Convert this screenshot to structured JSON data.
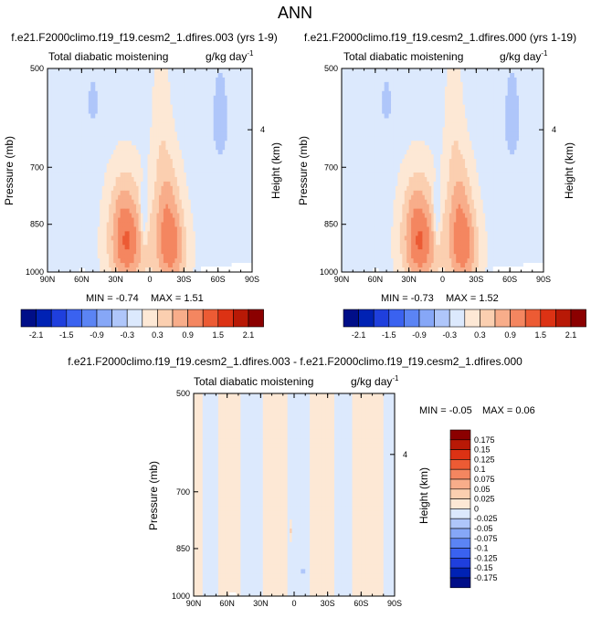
{
  "page": {
    "title": "ANN"
  },
  "units_label": "g/kg day",
  "units_exp": "-1",
  "chart_data": [
    {
      "type": "heatmap",
      "title": "f.e21.F2000climo.f19_f19.cesm2_1.dfires.003 (yrs 1-9)",
      "subtitle_left": "Total diabatic moistening",
      "ylabel": "Pressure (mb)",
      "ylabel_right": "Height (km)",
      "x_ticks": [
        "90N",
        "60N",
        "30N",
        "0",
        "30S",
        "60S",
        "90S"
      ],
      "y_ticks": [
        "500",
        "700",
        "850",
        "1000"
      ],
      "y_ticks_right": [
        "4"
      ],
      "xlim": [
        90,
        -90
      ],
      "ylim": [
        1000,
        500
      ],
      "log_scale_y": true,
      "min_label": "MIN =  -0.74",
      "max_label": "MAX =   1.51",
      "features": [
        {
          "lat": 20,
          "p": 930,
          "value": 1.1,
          "sx": 16,
          "sp": 130
        },
        {
          "lat": -18,
          "p": 930,
          "value": 1.1,
          "sx": 14,
          "sp": 130
        },
        {
          "lat": 22,
          "p": 800,
          "value": 0.6,
          "sx": 14,
          "sp": 120
        },
        {
          "lat": -15,
          "p": 780,
          "value": 0.6,
          "sx": 12,
          "sp": 130
        },
        {
          "lat": -10,
          "p": 600,
          "value": 0.25,
          "sx": 8,
          "sp": 150
        },
        {
          "lat": 5,
          "p": 820,
          "value": -0.6,
          "sx": 3,
          "sp": 80
        },
        {
          "lat": 50,
          "p": 560,
          "value": -0.3,
          "sx": 6,
          "sp": 60
        },
        {
          "lat": -62,
          "p": 590,
          "value": -0.35,
          "sx": 8,
          "sp": 110
        }
      ],
      "background": -0.1
    },
    {
      "type": "heatmap",
      "title": "f.e21.F2000climo.f19_f19.cesm2_1.dfires.000 (yrs 1-19)",
      "subtitle_left": "Total diabatic moistening",
      "ylabel": "Pressure (mb)",
      "ylabel_right": "Height (km)",
      "x_ticks": [
        "90N",
        "60N",
        "30N",
        "0",
        "30S",
        "60S",
        "90S"
      ],
      "y_ticks": [
        "500",
        "700",
        "850",
        "1000"
      ],
      "y_ticks_right": [
        "4"
      ],
      "xlim": [
        90,
        -90
      ],
      "ylim": [
        1000,
        500
      ],
      "log_scale_y": true,
      "min_label": "MIN =  -0.73",
      "max_label": "MAX =   1.52",
      "features": [
        {
          "lat": 20,
          "p": 930,
          "value": 1.1,
          "sx": 16,
          "sp": 130
        },
        {
          "lat": -18,
          "p": 930,
          "value": 1.1,
          "sx": 14,
          "sp": 130
        },
        {
          "lat": 22,
          "p": 800,
          "value": 0.6,
          "sx": 14,
          "sp": 120
        },
        {
          "lat": -15,
          "p": 780,
          "value": 0.6,
          "sx": 12,
          "sp": 130
        },
        {
          "lat": -10,
          "p": 600,
          "value": 0.25,
          "sx": 8,
          "sp": 150
        },
        {
          "lat": 5,
          "p": 820,
          "value": -0.6,
          "sx": 3,
          "sp": 80
        },
        {
          "lat": 50,
          "p": 560,
          "value": -0.3,
          "sx": 6,
          "sp": 60
        },
        {
          "lat": -62,
          "p": 590,
          "value": -0.35,
          "sx": 8,
          "sp": 110
        }
      ],
      "background": -0.1
    },
    {
      "type": "heatmap",
      "title": "f.e21.F2000climo.f19_f19.cesm2_1.dfires.003 - f.e21.F2000climo.f19_f19.cesm2_1.dfires.000",
      "subtitle_left": "Total diabatic moistening",
      "ylabel": "Pressure (mb)",
      "ylabel_right": "Height (km)",
      "x_ticks": [
        "90N",
        "60N",
        "30N",
        "0",
        "30S",
        "60S",
        "90S"
      ],
      "y_ticks": [
        "500",
        "700",
        "850",
        "1000"
      ],
      "y_ticks_right": [
        "4"
      ],
      "xlim": [
        90,
        -90
      ],
      "ylim": [
        1000,
        500
      ],
      "log_scale_y": true,
      "min_label": "MIN =  -0.05",
      "max_label": "MAX =   0.06",
      "bands": [
        {
          "lat0": 90,
          "lat1": 82,
          "value": 0.015
        },
        {
          "lat0": 82,
          "lat1": 68,
          "value": -0.01
        },
        {
          "lat0": 68,
          "lat1": 48,
          "value": 0.015
        },
        {
          "lat0": 48,
          "lat1": 28,
          "value": -0.01
        },
        {
          "lat0": 28,
          "lat1": 6,
          "value": 0.015
        },
        {
          "lat0": 6,
          "lat1": -14,
          "value": -0.01
        },
        {
          "lat0": -14,
          "lat1": -36,
          "value": 0.015
        },
        {
          "lat0": -36,
          "lat1": -52,
          "value": -0.01
        },
        {
          "lat0": -52,
          "lat1": -80,
          "value": 0.015
        },
        {
          "lat0": -80,
          "lat1": -90,
          "value": -0.01
        }
      ],
      "spots": [
        {
          "lat": 3,
          "p": 800,
          "value": 0.04,
          "sx": 1.5,
          "sp": 25
        },
        {
          "lat": -8,
          "p": 920,
          "value": -0.04,
          "sx": 1.5,
          "sp": 15
        }
      ]
    }
  ],
  "colorbar_main": {
    "labels": [
      "-2.1",
      "-1.5",
      "-0.9",
      "-0.3",
      "0.3",
      "0.9",
      "1.5",
      "2.1"
    ],
    "levels": [
      -2.1,
      -1.8,
      -1.5,
      -1.2,
      -0.9,
      -0.6,
      -0.3,
      0,
      0.3,
      0.6,
      0.9,
      1.2,
      1.5,
      1.8,
      2.1
    ],
    "colors": [
      "#000e88",
      "#0022b4",
      "#1f3fdd",
      "#3a62f0",
      "#5b84f4",
      "#86a7f7",
      "#afc6fa",
      "#dce9fd",
      "#fde8d5",
      "#fbcfb0",
      "#f8ad8a",
      "#f48660",
      "#ec5b34",
      "#dc3214",
      "#b81906",
      "#8b0000"
    ]
  },
  "colorbar_diff": {
    "labels": [
      "0.175",
      "0.15",
      "0.125",
      "0.1",
      "0.075",
      "0.05",
      "0.025",
      "0",
      "-0.025",
      "-0.05",
      "-0.075",
      "-0.1",
      "-0.125",
      "-0.15",
      "-0.175"
    ],
    "levels": [
      0.175,
      0.15,
      0.125,
      0.1,
      0.075,
      0.05,
      0.025,
      0,
      -0.025,
      -0.05,
      -0.075,
      -0.1,
      -0.125,
      -0.15,
      -0.175
    ],
    "colors": [
      "#8b0000",
      "#b81906",
      "#dc3214",
      "#ec5b34",
      "#f48660",
      "#f8ad8a",
      "#fbcfb0",
      "#fde8d5",
      "#dce9fd",
      "#afc6fa",
      "#86a7f7",
      "#5b84f4",
      "#3a62f0",
      "#1f3fdd",
      "#0022b4",
      "#000e88"
    ]
  }
}
